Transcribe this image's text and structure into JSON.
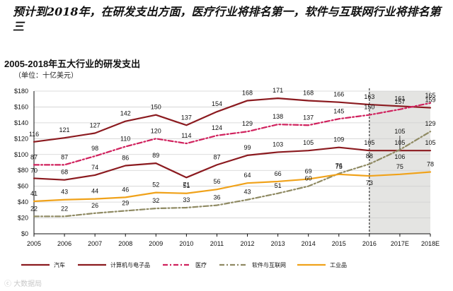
{
  "headline": "预计到2018年，在研发支出方面，医疗行业将排名第一，软件与互联网行业将排名第三",
  "watermark": "大数据局",
  "chart_data": {
    "type": "line",
    "title": "2005-2018年五大行业的研发支出",
    "unit_label": "（单位：十亿美元）",
    "categories": [
      "2005",
      "2006",
      "2007",
      "2008",
      "2009",
      "2010",
      "2011",
      "2012",
      "2013",
      "2014",
      "2015",
      "2016",
      "2017E",
      "2018E"
    ],
    "ylim": [
      0,
      180
    ],
    "yticks": [
      "$0",
      "$20",
      "$40",
      "$60",
      "$80",
      "$100",
      "$120",
      "$140",
      "$160",
      "$180"
    ],
    "grid": true,
    "forecast_from": "2016",
    "series": [
      {
        "name": "汽车",
        "color": "#8b1a1f",
        "dash": "solid",
        "values": [
          116,
          121,
          127,
          142,
          150,
          137,
          154,
          168,
          171,
          168,
          166,
          163,
          161,
          159
        ],
        "labels": [
          "116",
          "121",
          "127",
          "142",
          "150",
          "137",
          "154",
          "168",
          "171",
          "168",
          "166",
          "163",
          "161",
          "159"
        ]
      },
      {
        "name": "计算机与电子品",
        "color": "#8b1a1f",
        "dash": "solid",
        "values": [
          70,
          68,
          74,
          86,
          89,
          71,
          87,
          99,
          103,
          105,
          109,
          105,
          105,
          105
        ],
        "labels": [
          "70",
          "68",
          "74",
          "86",
          "89",
          "71",
          "87",
          "99",
          "103",
          "105",
          "109",
          "105",
          "105",
          "105"
        ]
      },
      {
        "name": "医疗",
        "color": "#d0215d",
        "dash": "dashdot",
        "values": [
          87,
          87,
          98,
          110,
          120,
          114,
          124,
          129,
          138,
          137,
          145,
          150,
          157,
          165
        ],
        "labels": [
          "87",
          "87",
          "98",
          "110",
          "120",
          "114",
          "124",
          "129",
          "138",
          "137",
          "145",
          "150",
          "157",
          "165"
        ]
      },
      {
        "name": "软件与互联网",
        "color": "#8f8a63",
        "dash": "dashdot",
        "values": [
          22,
          22,
          26,
          29,
          32,
          33,
          36,
          43,
          51,
          60,
          76,
          88,
          106,
          129
        ],
        "labels": [
          "22",
          "22",
          "26",
          "29",
          "32",
          "33",
          "36",
          "43",
          "51",
          "60",
          "76",
          "88",
          "106",
          "129"
        ]
      },
      {
        "name": "工业品",
        "color": "#f0a21a",
        "dash": "solid",
        "values": [
          41,
          43,
          44,
          46,
          52,
          51,
          56,
          64,
          66,
          69,
          75,
          73,
          75,
          78
        ],
        "labels": [
          "41",
          "43",
          "44",
          "46",
          "52",
          "51",
          "56",
          "64",
          "66",
          "69",
          "75",
          "73",
          "75",
          "78"
        ]
      }
    ],
    "annotations": [
      {
        "text": "105",
        "x": "2017E",
        "y": 105
      }
    ]
  }
}
